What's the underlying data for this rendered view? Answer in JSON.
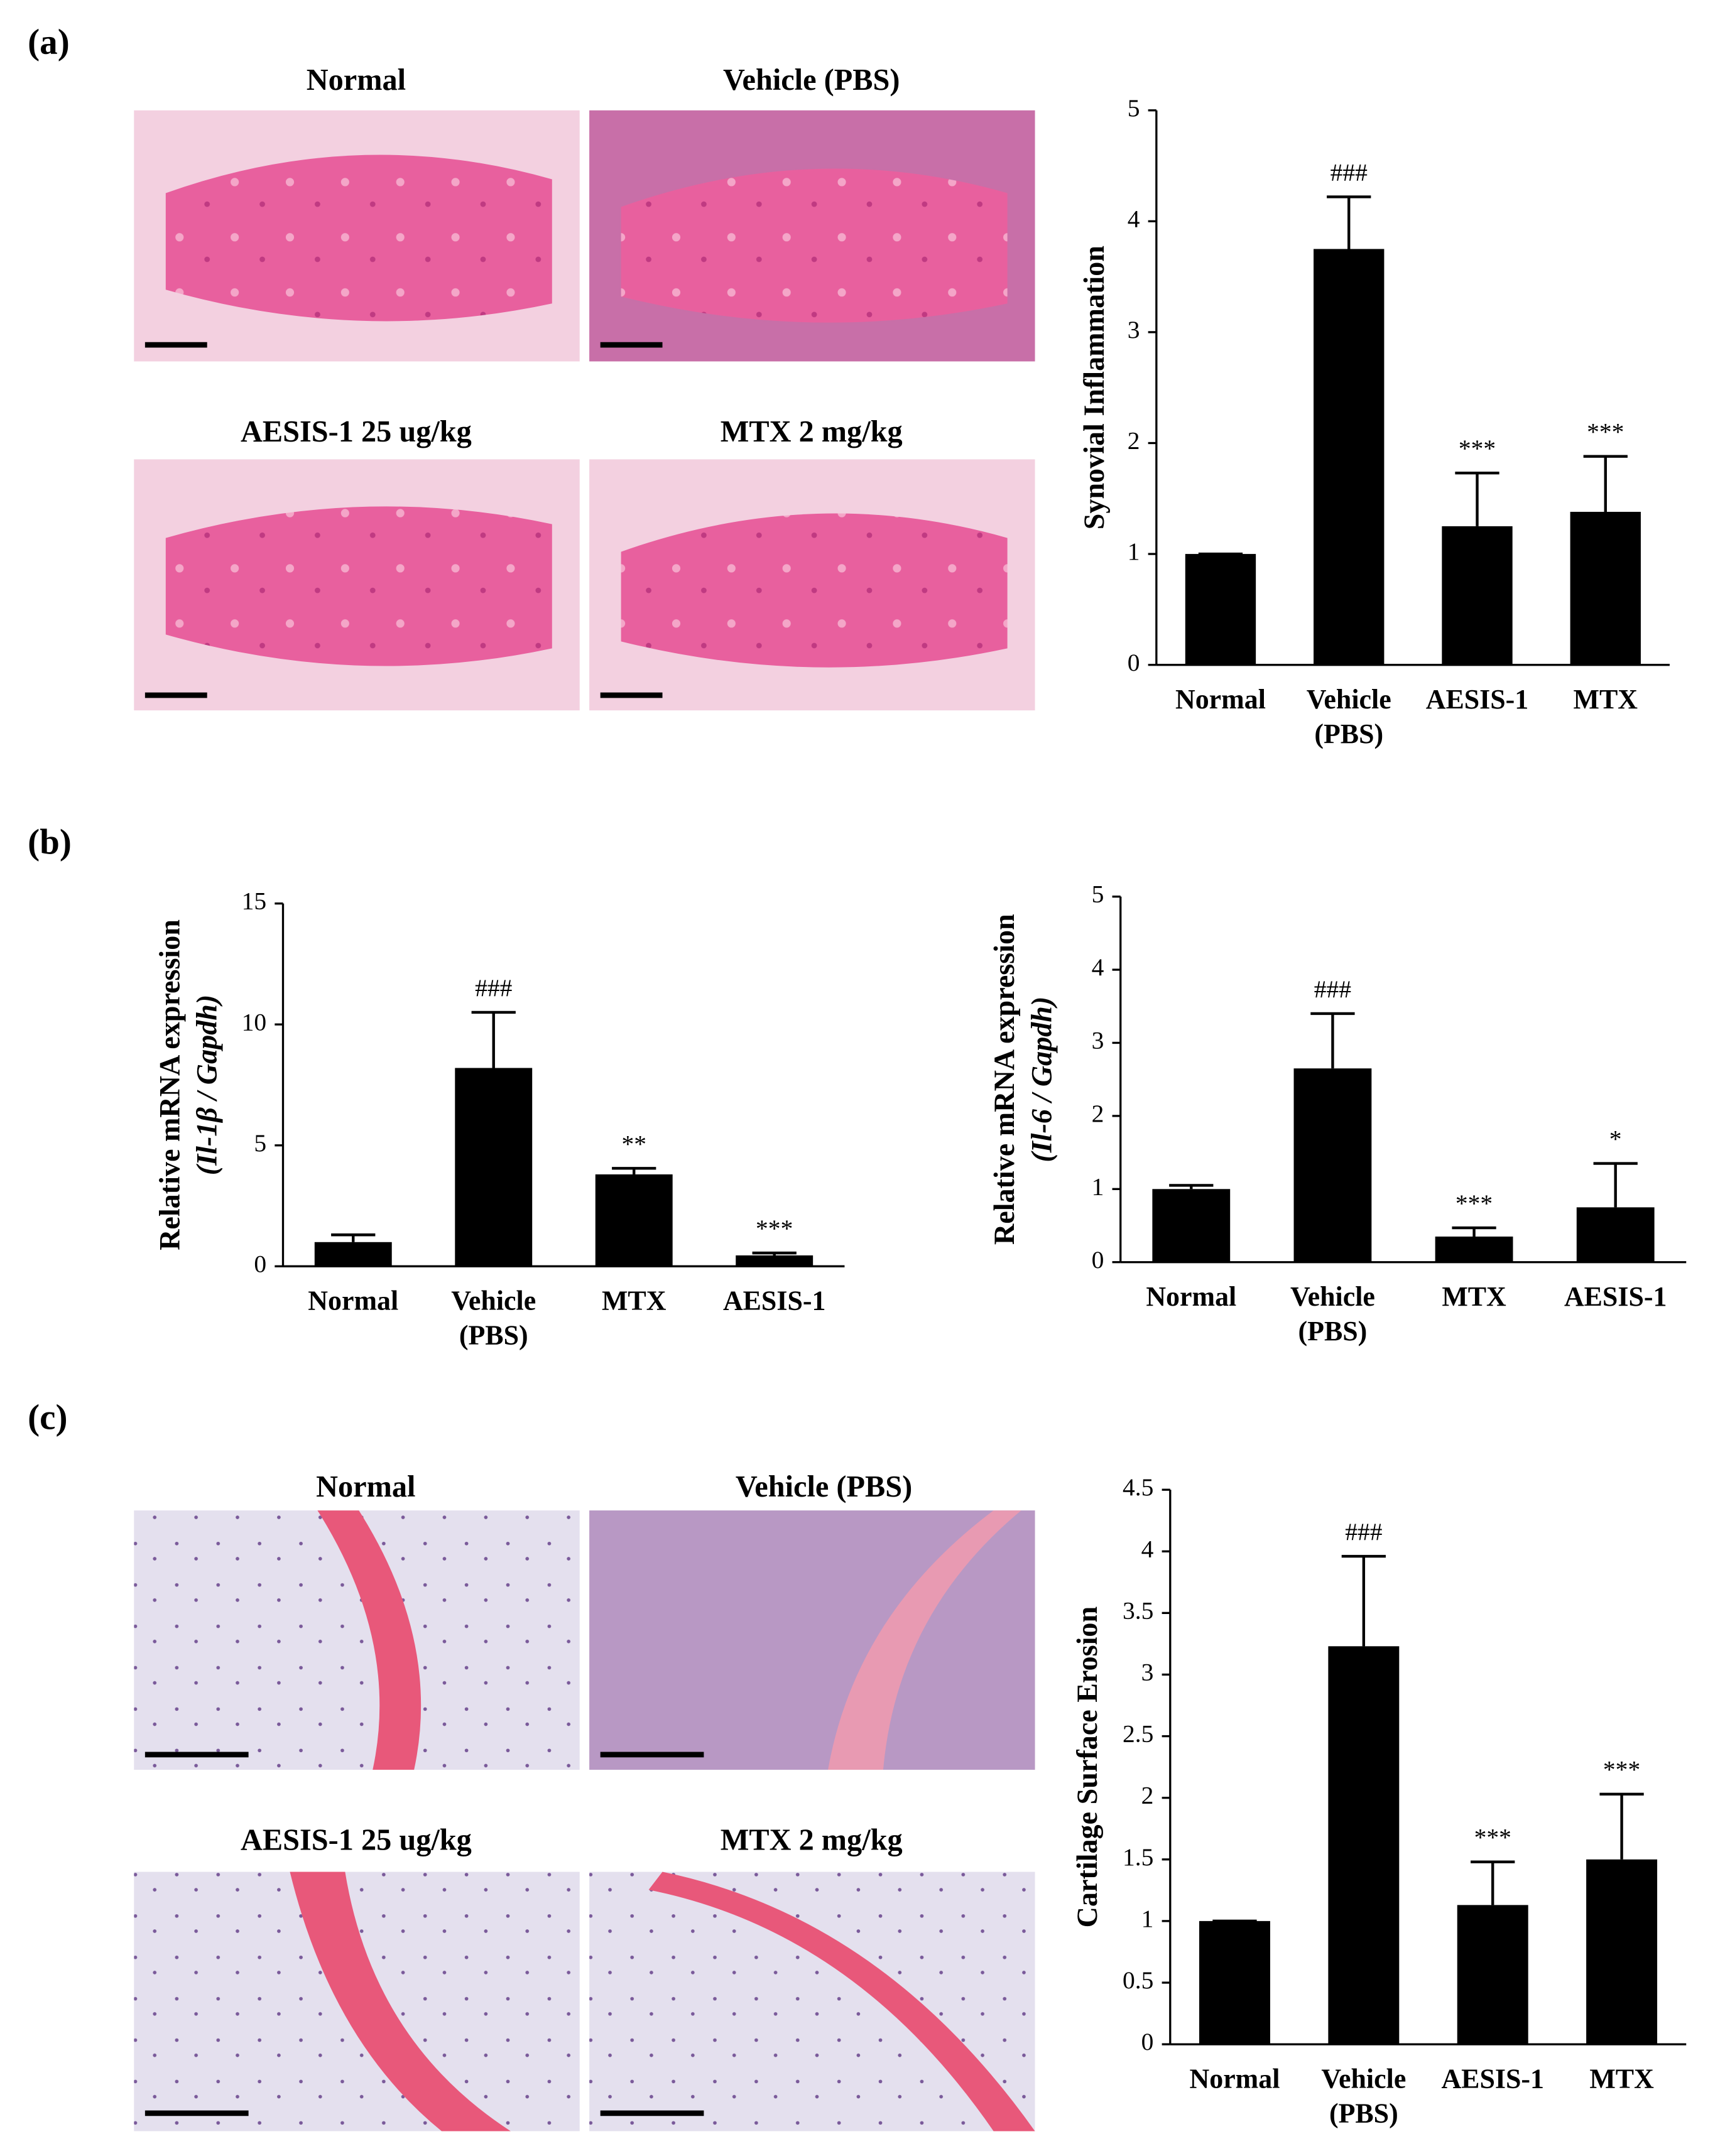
{
  "panels": [
    "(a)",
    "(b)",
    "(c)"
  ],
  "images": {
    "a": [
      "Normal",
      "Vehicle (PBS)",
      "AESIS-1 25 ug/kg",
      "MTX 2 mg/kg"
    ],
    "c": [
      "Normal",
      "Vehicle (PBS)",
      "AESIS-1 25 ug/kg",
      "MTX 2 mg/kg"
    ]
  },
  "chart_data": [
    {
      "type": "bar",
      "ylabel": [
        "Synovial Inflammation"
      ],
      "categories": [
        "Normal",
        "Vehicle (PBS)",
        "AESIS-1",
        "MTX"
      ],
      "values": [
        1.0,
        3.75,
        1.25,
        1.38
      ],
      "errors": [
        0,
        0.47,
        0.48,
        0.5
      ],
      "annotations": [
        null,
        "###",
        "***",
        "***"
      ],
      "color": "#000000",
      "ylim": [
        0,
        5
      ],
      "yticks": [
        0,
        1,
        2,
        3,
        4,
        5
      ]
    },
    {
      "type": "bar",
      "ylabel": [
        "Relative mRNA expression",
        "(Il-1β / Gapdh)"
      ],
      "categories": [
        "Normal",
        "Vehicle (PBS)",
        "MTX",
        "AESIS-1"
      ],
      "values": [
        1.0,
        8.2,
        3.8,
        0.45
      ],
      "errors": [
        0.3,
        2.3,
        0.25,
        0.1
      ],
      "annotations": [
        null,
        "###",
        "**",
        "***"
      ],
      "color": "#000000",
      "ylim": [
        0,
        15
      ],
      "yticks": [
        0,
        5,
        10,
        15
      ]
    },
    {
      "type": "bar",
      "ylabel": [
        "Relative mRNA expression",
        "(Il-6 / Gapdh)"
      ],
      "categories": [
        "Normal",
        "Vehicle (PBS)",
        "MTX",
        "AESIS-1"
      ],
      "values": [
        1.0,
        2.65,
        0.35,
        0.75
      ],
      "errors": [
        0.05,
        0.75,
        0.12,
        0.6
      ],
      "annotations": [
        null,
        "###",
        "***",
        "*"
      ],
      "color": "#000000",
      "ylim": [
        0,
        5
      ],
      "yticks": [
        0,
        1,
        2,
        3,
        4,
        5
      ]
    },
    {
      "type": "bar",
      "ylabel": [
        "Cartilage Surface Erosion"
      ],
      "categories": [
        "Normal",
        "Vehicle (PBS)",
        "AESIS-1",
        "MTX"
      ],
      "values": [
        1.0,
        3.23,
        1.13,
        1.5
      ],
      "errors": [
        0,
        0.73,
        0.35,
        0.53
      ],
      "annotations": [
        null,
        "###",
        "***",
        "***"
      ],
      "color": "#000000",
      "ylim": [
        0,
        4.5
      ],
      "yticks": [
        0,
        0.5,
        1,
        1.5,
        2,
        2.5,
        3,
        3.5,
        4,
        4.5
      ]
    }
  ]
}
